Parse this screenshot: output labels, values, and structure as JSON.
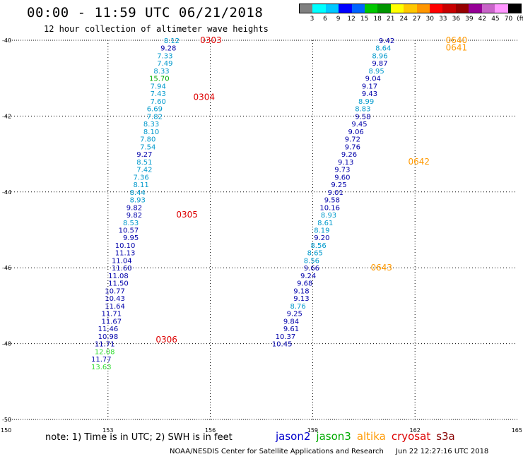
{
  "header": {
    "title": "00:00 - 11:59 UTC 06/21/2018",
    "subtitle": "12 hour collection of altimeter wave heights"
  },
  "colorbar": {
    "colors": [
      "#808080",
      "#00ffff",
      "#00c8ff",
      "#0000ff",
      "#0064ff",
      "#00c800",
      "#009600",
      "#ffff00",
      "#ffc800",
      "#ff9600",
      "#ff0000",
      "#c80000",
      "#960000",
      "#960096",
      "#c864c8",
      "#ff96ff",
      "#000000"
    ],
    "labels": [
      "3",
      "6",
      "9",
      "12",
      "15",
      "18",
      "21",
      "24",
      "27",
      "30",
      "33",
      "36",
      "39",
      "42",
      "45",
      "70",
      "(ft)"
    ]
  },
  "footer": {
    "note": "note: 1) Time is in UTC; 2) SWH is in feet",
    "credit": "NOAA/NESDIS Center for Satellite Applications and Research",
    "timestamp": "Jun 22 12:27:16 UTC 2018"
  },
  "legend": [
    {
      "name": "jason2",
      "color": "#0000cc"
    },
    {
      "name": "jason3",
      "color": "#00aa00"
    },
    {
      "name": "altika",
      "color": "#ff9900"
    },
    {
      "name": "cryosat",
      "color": "#dd0000"
    },
    {
      "name": "s3a",
      "color": "#880000"
    }
  ],
  "chart_data": {
    "type": "scatter",
    "title": "00:00 - 11:59 UTC 06/21/2018",
    "subtitle": "12 hour collection of altimeter wave heights",
    "xlabel": "",
    "ylabel": "",
    "xlim": [
      150,
      165
    ],
    "ylim": [
      -50,
      -40
    ],
    "x_ticks": [
      150,
      153,
      156,
      159,
      162,
      165
    ],
    "x_tick_labels": [
      "150",
      "153",
      "156",
      "159",
      "162",
      "165"
    ],
    "y_ticks": [
      -40,
      -42,
      -44,
      -46,
      -48,
      -50
    ],
    "y_tick_labels": [
      "-40",
      "-42",
      "-44",
      "-46",
      "-48",
      "-50"
    ],
    "grid": true,
    "grid_x": [
      153,
      156,
      159,
      162
    ],
    "grid_y": [
      -42,
      -44,
      -46,
      -48
    ],
    "series": [
      {
        "name": "jason2",
        "points": [
          {
            "x": 155.1,
            "y": -40.0,
            "v": "8.12",
            "c": "#0099cc"
          },
          {
            "x": 155.0,
            "y": -40.2,
            "v": "9.28",
            "c": "#0000aa"
          },
          {
            "x": 154.9,
            "y": -40.4,
            "v": "7.33",
            "c": "#0099cc"
          },
          {
            "x": 154.9,
            "y": -40.6,
            "v": "7.49",
            "c": "#0099cc"
          },
          {
            "x": 154.8,
            "y": -40.8,
            "v": "8.33",
            "c": "#0099cc"
          },
          {
            "x": 154.8,
            "y": -41.0,
            "v": "15.70",
            "c": "#00aa00"
          },
          {
            "x": 154.7,
            "y": -41.2,
            "v": "7.94",
            "c": "#0099cc"
          },
          {
            "x": 154.7,
            "y": -41.4,
            "v": "7.43",
            "c": "#0099cc"
          },
          {
            "x": 154.7,
            "y": -41.6,
            "v": "7.60",
            "c": "#0099cc"
          },
          {
            "x": 154.6,
            "y": -41.8,
            "v": "6.69",
            "c": "#0099cc"
          },
          {
            "x": 154.6,
            "y": -42.0,
            "v": "7.82",
            "c": "#0099cc"
          },
          {
            "x": 154.5,
            "y": -42.2,
            "v": "8.33",
            "c": "#0099cc"
          },
          {
            "x": 154.5,
            "y": -42.4,
            "v": "8.10",
            "c": "#0099cc"
          },
          {
            "x": 154.4,
            "y": -42.6,
            "v": "7.80",
            "c": "#0099cc"
          },
          {
            "x": 154.4,
            "y": -42.8,
            "v": "7.54",
            "c": "#0099cc"
          },
          {
            "x": 154.3,
            "y": -43.0,
            "v": "9.27",
            "c": "#0000aa"
          },
          {
            "x": 154.3,
            "y": -43.2,
            "v": "8.51",
            "c": "#0099cc"
          },
          {
            "x": 154.3,
            "y": -43.4,
            "v": "7.42",
            "c": "#0099cc"
          },
          {
            "x": 154.2,
            "y": -43.6,
            "v": "7.36",
            "c": "#0099cc"
          },
          {
            "x": 154.2,
            "y": -43.8,
            "v": "8.11",
            "c": "#0099cc"
          },
          {
            "x": 154.1,
            "y": -44.0,
            "v": "8.44",
            "c": "#0099cc"
          },
          {
            "x": 154.1,
            "y": -44.2,
            "v": "8.93",
            "c": "#0099cc"
          },
          {
            "x": 154.0,
            "y": -44.4,
            "v": "9.82",
            "c": "#0000aa"
          },
          {
            "x": 154.0,
            "y": -44.6,
            "v": "9.82",
            "c": "#0000aa"
          },
          {
            "x": 153.9,
            "y": -44.8,
            "v": "8.53",
            "c": "#0099cc"
          },
          {
            "x": 153.9,
            "y": -45.0,
            "v": "10.57",
            "c": "#0000aa"
          },
          {
            "x": 153.9,
            "y": -45.2,
            "v": "9.95",
            "c": "#0000aa"
          },
          {
            "x": 153.8,
            "y": -45.4,
            "v": "10.10",
            "c": "#0000aa"
          },
          {
            "x": 153.8,
            "y": -45.6,
            "v": "11.13",
            "c": "#0000aa"
          },
          {
            "x": 153.7,
            "y": -45.8,
            "v": "11.04",
            "c": "#0000aa"
          },
          {
            "x": 153.7,
            "y": -46.0,
            "v": "11.60",
            "c": "#0000aa"
          },
          {
            "x": 153.6,
            "y": -46.2,
            "v": "11.08",
            "c": "#0000aa"
          },
          {
            "x": 153.6,
            "y": -46.4,
            "v": "11.50",
            "c": "#0000aa"
          },
          {
            "x": 153.5,
            "y": -46.6,
            "v": "10.77",
            "c": "#0000aa"
          },
          {
            "x": 153.5,
            "y": -46.8,
            "v": "10.43",
            "c": "#0000aa"
          },
          {
            "x": 153.5,
            "y": -47.0,
            "v": "11.64",
            "c": "#0000aa"
          },
          {
            "x": 153.4,
            "y": -47.2,
            "v": "11.71",
            "c": "#0000aa"
          },
          {
            "x": 153.4,
            "y": -47.4,
            "v": "11.67",
            "c": "#0000aa"
          },
          {
            "x": 153.3,
            "y": -47.6,
            "v": "11.46",
            "c": "#0000aa"
          },
          {
            "x": 153.3,
            "y": -47.8,
            "v": "10.98",
            "c": "#0000aa"
          },
          {
            "x": 153.2,
            "y": -48.0,
            "v": "11.71",
            "c": "#0000aa"
          },
          {
            "x": 153.2,
            "y": -48.2,
            "v": "12.08",
            "c": "#33dd33"
          },
          {
            "x": 153.1,
            "y": -48.4,
            "v": "11.77",
            "c": "#0000aa"
          },
          {
            "x": 153.1,
            "y": -48.6,
            "v": "13.63",
            "c": "#33dd33"
          },
          {
            "x": 161.4,
            "y": -40.0,
            "v": "9.42",
            "c": "#0000aa"
          },
          {
            "x": 161.3,
            "y": -40.2,
            "v": "8.64",
            "c": "#0099cc"
          },
          {
            "x": 161.2,
            "y": -40.4,
            "v": "8.96",
            "c": "#0099cc"
          },
          {
            "x": 161.2,
            "y": -40.6,
            "v": "9.87",
            "c": "#0000aa"
          },
          {
            "x": 161.1,
            "y": -40.8,
            "v": "8.95",
            "c": "#0099cc"
          },
          {
            "x": 161.0,
            "y": -41.0,
            "v": "9.04",
            "c": "#0000aa"
          },
          {
            "x": 160.9,
            "y": -41.2,
            "v": "9.17",
            "c": "#0000aa"
          },
          {
            "x": 160.9,
            "y": -41.4,
            "v": "9.43",
            "c": "#0000aa"
          },
          {
            "x": 160.8,
            "y": -41.6,
            "v": "8.99",
            "c": "#0099cc"
          },
          {
            "x": 160.7,
            "y": -41.8,
            "v": "8.83",
            "c": "#0099cc"
          },
          {
            "x": 160.7,
            "y": -42.0,
            "v": "9.58",
            "c": "#0000aa"
          },
          {
            "x": 160.6,
            "y": -42.2,
            "v": "9.45",
            "c": "#0000aa"
          },
          {
            "x": 160.5,
            "y": -42.4,
            "v": "9.06",
            "c": "#0000aa"
          },
          {
            "x": 160.4,
            "y": -42.6,
            "v": "9.72",
            "c": "#0000aa"
          },
          {
            "x": 160.4,
            "y": -42.8,
            "v": "9.76",
            "c": "#0000aa"
          },
          {
            "x": 160.3,
            "y": -43.0,
            "v": "9.26",
            "c": "#0000aa"
          },
          {
            "x": 160.2,
            "y": -43.2,
            "v": "9.13",
            "c": "#0000aa"
          },
          {
            "x": 160.1,
            "y": -43.4,
            "v": "9.73",
            "c": "#0000aa"
          },
          {
            "x": 160.1,
            "y": -43.6,
            "v": "9.60",
            "c": "#0000aa"
          },
          {
            "x": 160.0,
            "y": -43.8,
            "v": "9.25",
            "c": "#0000aa"
          },
          {
            "x": 159.9,
            "y": -44.0,
            "v": "9.01",
            "c": "#0000aa"
          },
          {
            "x": 159.8,
            "y": -44.2,
            "v": "9.58",
            "c": "#0000aa"
          },
          {
            "x": 159.8,
            "y": -44.4,
            "v": "10.16",
            "c": "#0000aa"
          },
          {
            "x": 159.7,
            "y": -44.6,
            "v": "8.93",
            "c": "#0099cc"
          },
          {
            "x": 159.6,
            "y": -44.8,
            "v": "8.61",
            "c": "#0099cc"
          },
          {
            "x": 159.5,
            "y": -45.0,
            "v": "8.19",
            "c": "#0099cc"
          },
          {
            "x": 159.5,
            "y": -45.2,
            "v": "9.20",
            "c": "#0000aa"
          },
          {
            "x": 159.4,
            "y": -45.4,
            "v": "8.56",
            "c": "#0099cc"
          },
          {
            "x": 159.3,
            "y": -45.6,
            "v": "8.65",
            "c": "#0099cc"
          },
          {
            "x": 159.2,
            "y": -45.8,
            "v": "8.56",
            "c": "#0099cc"
          },
          {
            "x": 159.2,
            "y": -46.0,
            "v": "9.66",
            "c": "#0000aa"
          },
          {
            "x": 159.1,
            "y": -46.2,
            "v": "9.24",
            "c": "#0000aa"
          },
          {
            "x": 159.0,
            "y": -46.4,
            "v": "9.68",
            "c": "#0000aa"
          },
          {
            "x": 158.9,
            "y": -46.6,
            "v": "9.18",
            "c": "#0000aa"
          },
          {
            "x": 158.9,
            "y": -46.8,
            "v": "9.13",
            "c": "#0000aa"
          },
          {
            "x": 158.8,
            "y": -47.0,
            "v": "8.76",
            "c": "#0099cc"
          },
          {
            "x": 158.7,
            "y": -47.2,
            "v": "9.25",
            "c": "#0000aa"
          },
          {
            "x": 158.6,
            "y": -47.4,
            "v": "9.84",
            "c": "#0000aa"
          },
          {
            "x": 158.6,
            "y": -47.6,
            "v": "9.61",
            "c": "#0000aa"
          },
          {
            "x": 158.5,
            "y": -47.8,
            "v": "10.37",
            "c": "#0000aa"
          },
          {
            "x": 158.4,
            "y": -48.0,
            "v": "10.45",
            "c": "#0000aa"
          }
        ]
      }
    ],
    "time_labels": [
      {
        "x": 155.7,
        "y": -40.0,
        "t": "0303",
        "c": "#dd0000"
      },
      {
        "x": 155.5,
        "y": -41.5,
        "t": "0304",
        "c": "#dd0000"
      },
      {
        "x": 155.0,
        "y": -44.6,
        "t": "0305",
        "c": "#dd0000"
      },
      {
        "x": 154.4,
        "y": -47.9,
        "t": "0306",
        "c": "#dd0000"
      },
      {
        "x": 162.9,
        "y": -40.0,
        "t": "0640",
        "c": "#ff9900"
      },
      {
        "x": 162.9,
        "y": -40.2,
        "t": "0641",
        "c": "#ff9900"
      },
      {
        "x": 161.8,
        "y": -43.2,
        "t": "0642",
        "c": "#ff9900"
      },
      {
        "x": 160.7,
        "y": -46.0,
        "t": "0643",
        "c": "#ff9900"
      }
    ]
  }
}
